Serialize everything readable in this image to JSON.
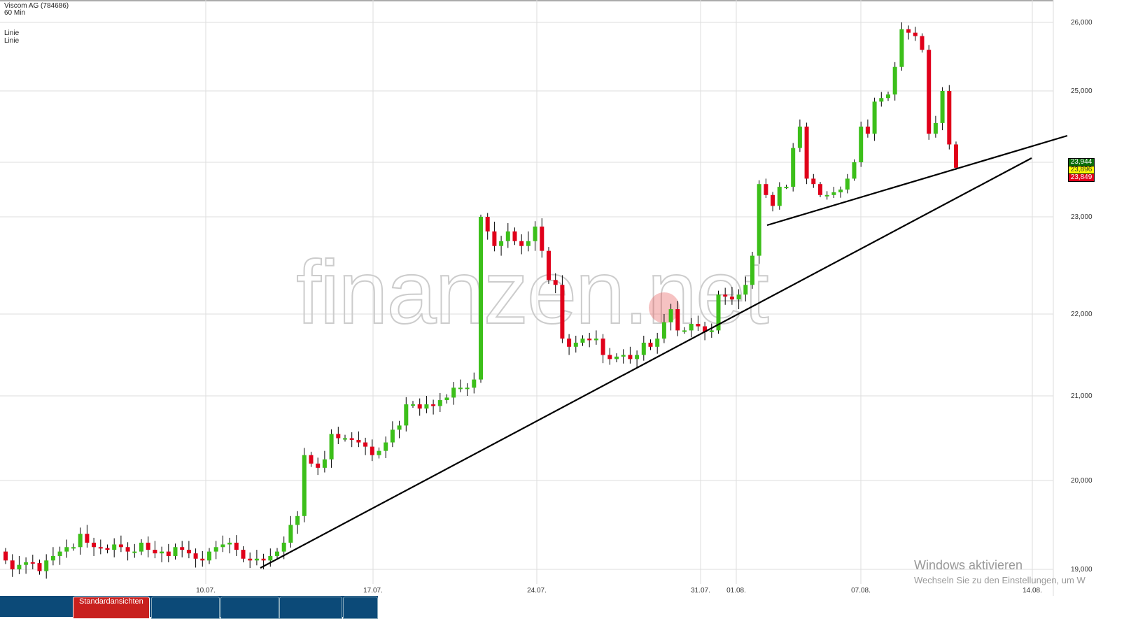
{
  "header": {
    "title": "Viscom AG (784686)",
    "interval": "60 Min",
    "indicators": [
      "Linie",
      "Linie"
    ]
  },
  "price_labels": [
    {
      "value": "23,944",
      "bg": "#0a6e0a",
      "fg": "#fff"
    },
    {
      "value": "23,896",
      "bg": "#ffff00",
      "fg": "#333"
    },
    {
      "value": "23,849",
      "bg": "#e0001a",
      "fg": "#fff"
    }
  ],
  "tabs": {
    "active": "Standardansichten"
  },
  "watermark": "finanzen.net",
  "windows": {
    "title": "Windows aktivieren",
    "subtitle": "Wechseln Sie zu den Einstellungen, um W"
  },
  "chart_data": {
    "type": "candlestick",
    "title": "Viscom AG (784686)",
    "y_ticks": [
      "19,000",
      "20,000",
      "21,000",
      "22,000",
      "23,000",
      "24,000",
      "25,000",
      "26,000"
    ],
    "y_tick_values": [
      19,
      20,
      21,
      22,
      23,
      24,
      25,
      26
    ],
    "x_ticks": [
      "10.07.",
      "17.07.",
      "24.07.",
      "31.07.",
      "01.08.",
      "07.08.",
      "14.08."
    ],
    "grid": true,
    "colors": {
      "up": "#3cbf1a",
      "down": "#e0001a",
      "trendline": "#000000"
    },
    "closes": [
      19.1,
      19.0,
      19.05,
      19.08,
      19.07,
      18.98,
      19.1,
      19.15,
      19.2,
      19.25,
      19.25,
      19.4,
      19.3,
      19.25,
      19.24,
      19.22,
      19.28,
      19.25,
      19.2,
      19.2,
      19.3,
      19.22,
      19.18,
      19.2,
      19.15,
      19.25,
      19.22,
      19.18,
      19.12,
      19.1,
      19.2,
      19.25,
      19.28,
      19.3,
      19.22,
      19.12,
      19.1,
      19.12,
      19.1,
      19.15,
      19.2,
      19.3,
      19.5,
      19.6,
      20.3,
      20.2,
      20.15,
      20.25,
      20.55,
      20.5,
      20.5,
      20.48,
      20.45,
      20.4,
      20.3,
      20.35,
      20.45,
      20.6,
      20.65,
      20.9,
      20.9,
      20.85,
      20.9,
      20.88,
      20.95,
      20.98,
      21.1,
      21.1,
      21.1,
      21.2,
      23.0,
      22.85,
      22.7,
      22.75,
      22.85,
      22.75,
      22.7,
      22.75,
      22.9,
      22.65,
      22.35,
      22.3,
      21.7,
      21.6,
      21.65,
      21.7,
      21.68,
      21.7,
      21.5,
      21.45,
      21.48,
      21.5,
      21.45,
      21.5,
      21.65,
      21.6,
      21.7,
      21.9,
      22.05,
      21.8,
      21.8,
      21.88,
      21.85,
      21.78,
      21.8,
      22.2,
      22.18,
      22.15,
      22.2,
      22.3,
      22.6,
      23.6,
      23.4,
      23.2,
      23.55,
      23.55,
      24.2,
      24.5,
      23.7,
      23.6,
      23.4,
      23.4,
      23.45,
      23.5,
      23.7,
      24.0,
      24.5,
      24.4,
      24.85,
      24.9,
      24.95,
      25.35,
      25.9,
      25.85,
      25.8,
      25.6,
      24.4,
      24.55,
      25.0,
      24.25,
      23.9
    ],
    "first_open": 19.2,
    "last_prices": [
      23.944,
      23.896,
      23.849
    ]
  }
}
